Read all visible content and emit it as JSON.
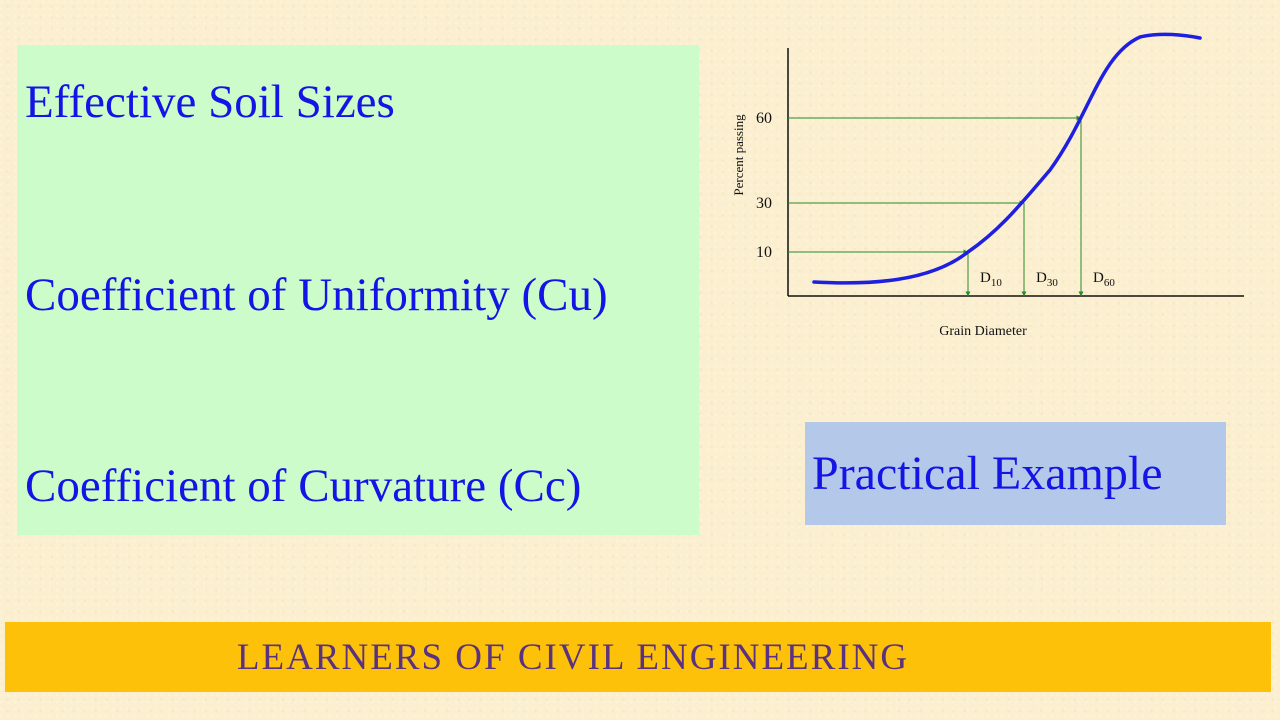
{
  "topics": {
    "effective_soil_sizes": "Effective Soil Sizes",
    "coefficient_uniformity": "Coefficient of Uniformity (Cu)",
    "coefficient_curvature": "Coefficient of Curvature (Cc)"
  },
  "chart_data": {
    "type": "line",
    "xlabel": "Grain Diameter",
    "ylabel": "Percent passing",
    "yticks": [
      "60",
      "30",
      "10"
    ],
    "markers": [
      {
        "base": "D",
        "sub": "10",
        "percent": 10
      },
      {
        "base": "D",
        "sub": "30",
        "percent": 30
      },
      {
        "base": "D",
        "sub": "60",
        "percent": 60
      }
    ],
    "curve_color": "#1f1fe0",
    "guide_color": "#2a8a2a"
  },
  "practical_example": {
    "label": "Practical Example"
  },
  "footer": {
    "text": "Learners of Civil Engineering",
    "background": "#fec10a",
    "text_color": "#5a3280"
  }
}
